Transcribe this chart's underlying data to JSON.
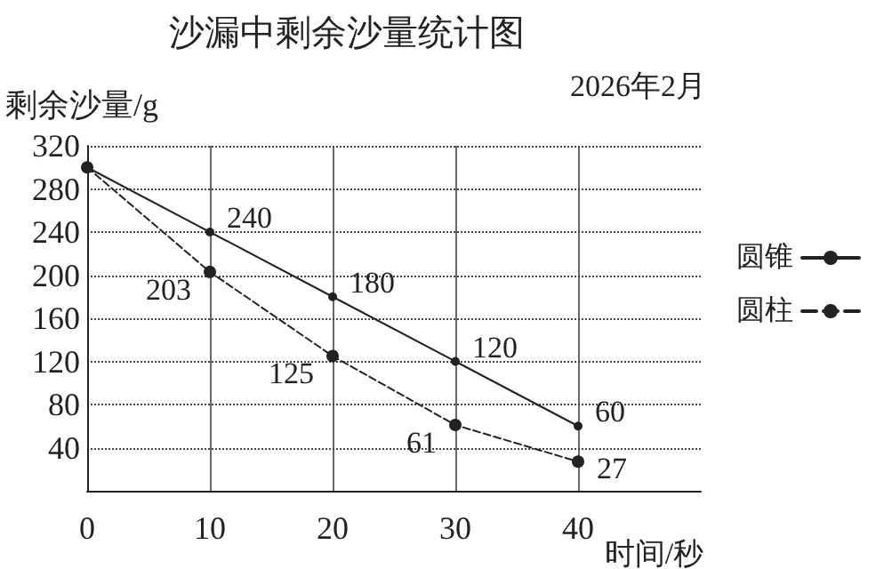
{
  "chart_data": {
    "type": "line",
    "title": "沙漏中剩余沙量统计图",
    "ylabel": "剩余沙量/g",
    "xlabel": "时间/秒",
    "annotations": [
      "2026年2月"
    ],
    "x": [
      0,
      10,
      20,
      30,
      40
    ],
    "xlim": [
      0,
      50
    ],
    "xticks": [
      0,
      10,
      20,
      30,
      40
    ],
    "ylim": [
      0,
      320
    ],
    "yticks": [
      40,
      80,
      120,
      160,
      200,
      240,
      280,
      320
    ],
    "series": [
      {
        "name": "圆锥",
        "color": "#222222",
        "line_style": "solid",
        "values": [
          300,
          240,
          180,
          120,
          60
        ],
        "value_labels": [
          null,
          "240",
          "180",
          "120",
          "60"
        ]
      },
      {
        "name": "圆柱",
        "color": "#222222",
        "line_style": "dashed",
        "values": [
          300,
          203,
          125,
          61,
          27
        ],
        "value_labels": [
          null,
          "203",
          "125",
          "61",
          "27"
        ]
      }
    ],
    "grid": true,
    "legend": "right",
    "marker": "circle"
  }
}
